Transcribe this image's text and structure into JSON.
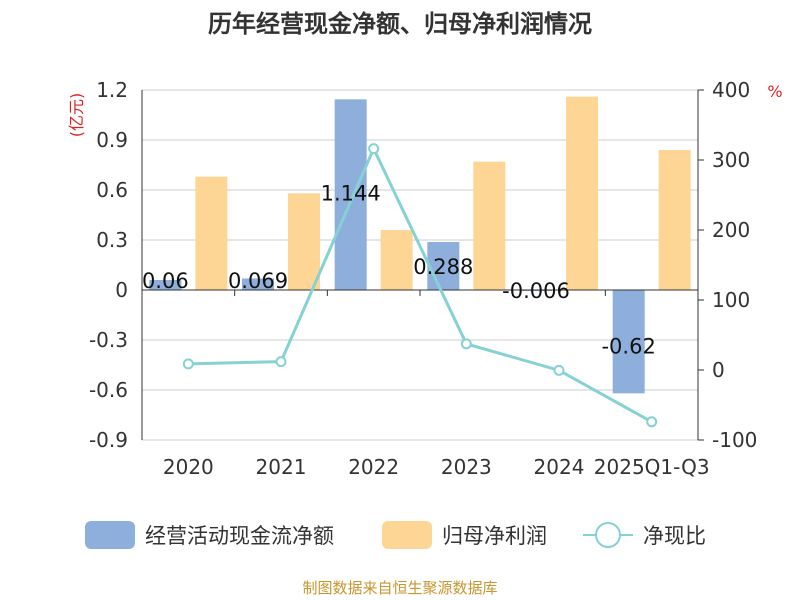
{
  "colors": {
    "cash_flow": "#8eaedb",
    "net_profit": "#fdd696",
    "ratio": "#86d1d3",
    "axis": "#333333",
    "grid": "#cccccc",
    "unit": "#dd2222",
    "source": "#c8962d"
  },
  "chart_data": {
    "type": "bar",
    "title": "历年经营现金净额、归母净利润情况",
    "categories": [
      "2020",
      "2021",
      "2022",
      "2023",
      "2024",
      "2025Q1-Q3"
    ],
    "y_left": {
      "unit": "(亿元)",
      "ylim": [
        -0.9,
        1.2
      ],
      "ticks": [
        "1.2",
        "0.9",
        "0.6",
        "0.3",
        "0",
        "-0.3",
        "-0.6",
        "-0.9"
      ]
    },
    "y_right": {
      "unit": "%",
      "ylim": [
        -100,
        400
      ],
      "ticks": [
        "400",
        "300",
        "200",
        "100",
        "0",
        "-100"
      ]
    },
    "series": [
      {
        "name": "经营活动现金流净额",
        "type": "bar",
        "axis": "left",
        "values": [
          0.06,
          0.069,
          1.144,
          0.288,
          -0.006,
          -0.62
        ],
        "labels": [
          "0.06",
          "0.069",
          "1.144",
          "0.288",
          "-0.006",
          "-0.62"
        ]
      },
      {
        "name": "归母净利润",
        "type": "bar",
        "axis": "left",
        "values": [
          0.68,
          0.58,
          0.36,
          0.77,
          1.16,
          0.84
        ]
      },
      {
        "name": "净现比",
        "type": "line",
        "axis": "right",
        "values": [
          8.8,
          11.9,
          316.2,
          37.4,
          -0.5,
          -74.0
        ]
      }
    ],
    "legend": [
      "经营活动现金流净额",
      "归母净利润",
      "净现比"
    ],
    "source": "制图数据来自恒生聚源数据库"
  }
}
